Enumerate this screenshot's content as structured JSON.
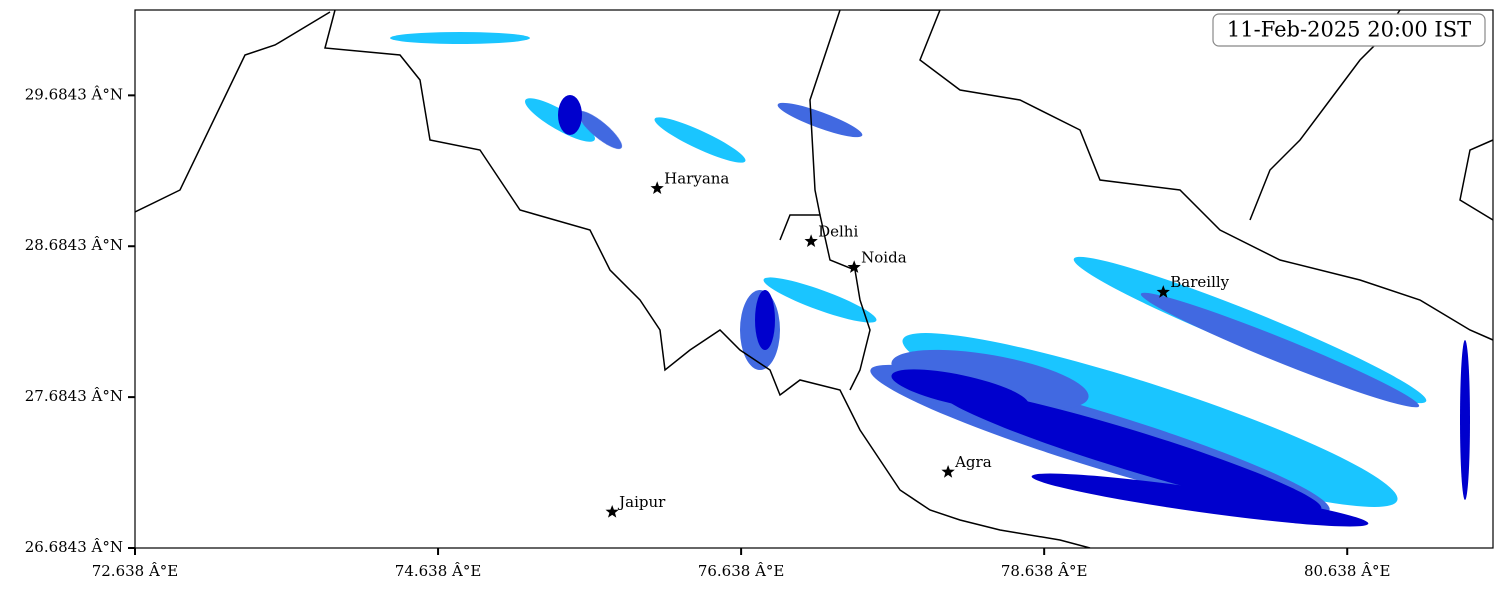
{
  "chart_data": {
    "type": "map",
    "title": "11-Feb-2025 20:00 IST",
    "xlim": [
      72.638,
      81.6
    ],
    "ylim": [
      26.6843,
      30.25
    ],
    "xticks": [
      {
        "value": 72.638,
        "label": "72.638 Â°E"
      },
      {
        "value": 74.638,
        "label": "74.638 Â°E"
      },
      {
        "value": 76.638,
        "label": "76.638 Â°E"
      },
      {
        "value": 78.638,
        "label": "78.638 Â°E"
      },
      {
        "value": 80.638,
        "label": "80.638 Â°E"
      }
    ],
    "yticks": [
      {
        "value": 26.6843,
        "label": "26.6843 Â°N"
      },
      {
        "value": 27.6843,
        "label": "27.6843 Â°N"
      },
      {
        "value": 28.6843,
        "label": "28.6843 Â°N"
      },
      {
        "value": 29.6843,
        "label": "29.6843 Â°N"
      }
    ],
    "points": [
      {
        "name": "Haryana",
        "lon": 76.084,
        "lat": 29.068
      },
      {
        "name": "Delhi",
        "lon": 77.1,
        "lat": 28.717
      },
      {
        "name": "Noida",
        "lon": 77.384,
        "lat": 28.545
      },
      {
        "name": "Bareilly",
        "lon": 79.424,
        "lat": 28.38
      },
      {
        "name": "Agra",
        "lon": 78.004,
        "lat": 27.188
      },
      {
        "name": "Jaipur",
        "lon": 75.787,
        "lat": 26.923
      }
    ]
  }
}
